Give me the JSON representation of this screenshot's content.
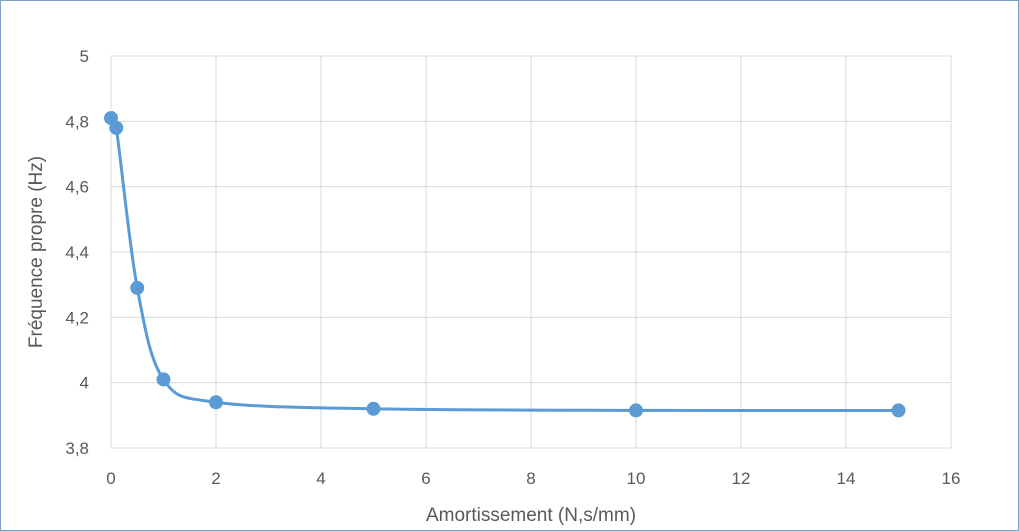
{
  "chart_data": {
    "type": "scatter",
    "title": "",
    "xlabel": "Amortissement (N,s/mm)",
    "ylabel": "Fréquence propre (Hz)",
    "xlim": [
      0,
      16
    ],
    "ylim": [
      3.8,
      5
    ],
    "x_ticks": [
      0,
      2,
      4,
      6,
      8,
      10,
      12,
      14,
      16
    ],
    "y_ticks": [
      3.8,
      4,
      4.2,
      4.4,
      4.6,
      4.8,
      5
    ],
    "x_tick_labels": [
      "0",
      "2",
      "4",
      "6",
      "8",
      "10",
      "12",
      "14",
      "16"
    ],
    "y_tick_labels": [
      "3,8",
      "4",
      "4,2",
      "4,4",
      "4,6",
      "4,8",
      "5"
    ],
    "grid": true,
    "smooth_line": true,
    "color": "#5b9bd5",
    "series": [
      {
        "points": [
          {
            "x": 0,
            "y": 4.81
          },
          {
            "x": 0.1,
            "y": 4.78
          },
          {
            "x": 0.5,
            "y": 4.29
          },
          {
            "x": 1,
            "y": 4.01
          },
          {
            "x": 2,
            "y": 3.94
          },
          {
            "x": 5,
            "y": 3.92
          },
          {
            "x": 10,
            "y": 3.915
          },
          {
            "x": 15,
            "y": 3.915
          }
        ]
      }
    ]
  }
}
